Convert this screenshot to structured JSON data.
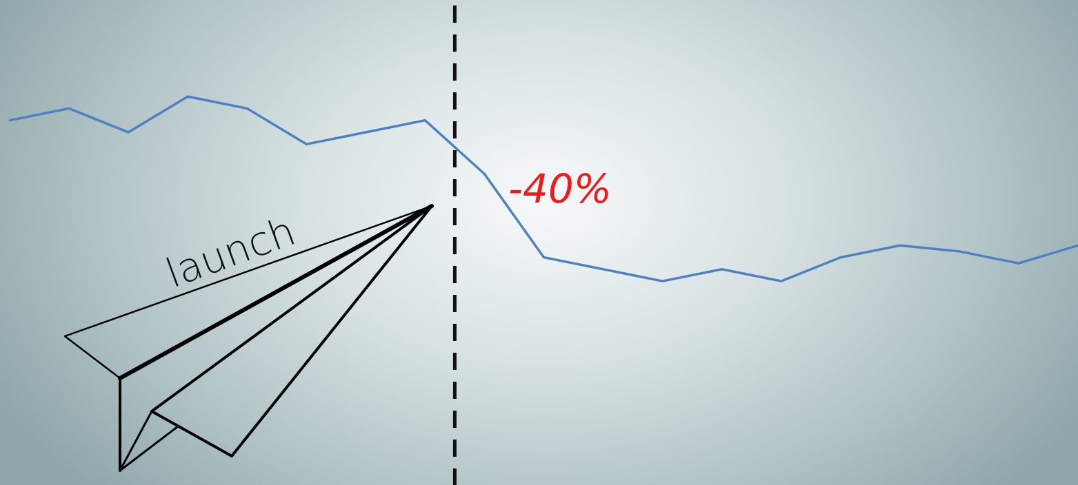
{
  "chart_data": {
    "type": "line",
    "title": "",
    "xlabel": "",
    "ylabel": "",
    "x": [
      1,
      2,
      3,
      4,
      5,
      6,
      7,
      8,
      9,
      10,
      11,
      12,
      13,
      14,
      15,
      16,
      17,
      18,
      19
    ],
    "series": [
      {
        "values": [
          100,
          104,
          96,
          108,
          104,
          92,
          96,
          100,
          82,
          54,
          50,
          46,
          50,
          46,
          54,
          58,
          56,
          52,
          58
        ]
      }
    ],
    "ylim": [
      0,
      130
    ],
    "grid": false,
    "legend": "none",
    "annotations": {
      "event_label": "launch",
      "event_x": 8.5,
      "change_label": "-40%"
    },
    "colors": {
      "line": "#4f80c0",
      "event_marker": "#111111",
      "change_label": "#ee1b1b"
    },
    "icons": [
      "paper-plane-icon"
    ]
  }
}
